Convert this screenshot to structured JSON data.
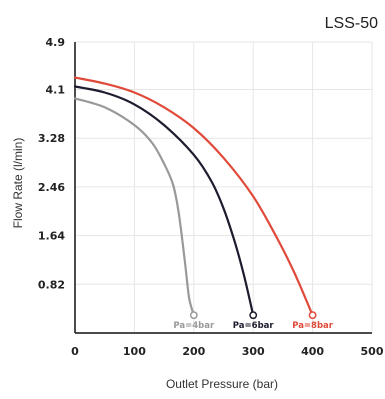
{
  "chart_data": {
    "type": "line",
    "title": "LSS-50",
    "xlabel": "Outlet Pressure (bar)",
    "ylabel": "Flow Rate  (l/min)",
    "xlim": [
      0,
      500
    ],
    "ylim": [
      0,
      4.9
    ],
    "x_ticks": [
      "0",
      "100",
      "200",
      "300",
      "400",
      "500"
    ],
    "y_ticks": [
      "0.82",
      "1.64",
      "2.46",
      "3.28",
      "4.1",
      "4.9"
    ],
    "grid": true,
    "series": [
      {
        "name": "Pa=4bar",
        "color": "#999999",
        "points": [
          [
            0,
            3.95
          ],
          [
            50,
            3.8
          ],
          [
            100,
            3.5
          ],
          [
            130,
            3.2
          ],
          [
            150,
            2.85
          ],
          [
            165,
            2.5
          ],
          [
            175,
            2.0
          ],
          [
            185,
            1.2
          ],
          [
            192,
            0.6
          ],
          [
            200,
            0.3
          ]
        ]
      },
      {
        "name": "Pa=6bar",
        "color": "#1c1c2e",
        "points": [
          [
            0,
            4.15
          ],
          [
            50,
            4.05
          ],
          [
            100,
            3.85
          ],
          [
            150,
            3.5
          ],
          [
            200,
            3.0
          ],
          [
            230,
            2.55
          ],
          [
            250,
            2.1
          ],
          [
            270,
            1.5
          ],
          [
            285,
            0.95
          ],
          [
            300,
            0.3
          ]
        ]
      },
      {
        "name": "Pa=8bar",
        "color": "#e04a3a",
        "points": [
          [
            0,
            4.3
          ],
          [
            50,
            4.2
          ],
          [
            100,
            4.05
          ],
          [
            150,
            3.8
          ],
          [
            200,
            3.45
          ],
          [
            250,
            2.95
          ],
          [
            300,
            2.3
          ],
          [
            340,
            1.6
          ],
          [
            370,
            1.0
          ],
          [
            400,
            0.3
          ]
        ]
      }
    ]
  }
}
